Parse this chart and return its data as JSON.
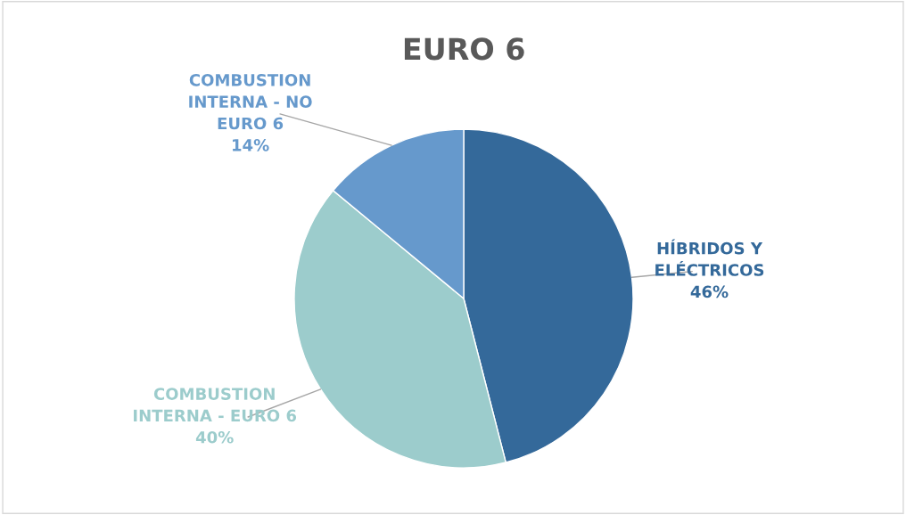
{
  "chart_data": {
    "type": "pie",
    "title": "EURO 6",
    "categories": [
      "HÍBRIDOS Y\nELÉCTRICOS",
      "COMBUSTION\nINTERNA - EURO 6",
      "COMBUSTION\nINTERNA - NO\nEURO 6"
    ],
    "values": [
      46,
      40,
      14
    ],
    "value_labels": [
      "46%",
      "40%",
      "14%"
    ],
    "colors": [
      "#34699a",
      "#9ccccc",
      "#6699cc"
    ],
    "legend": false
  }
}
